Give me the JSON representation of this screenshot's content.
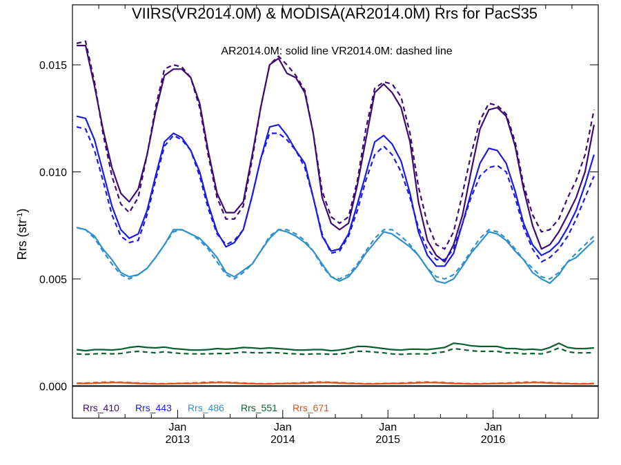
{
  "chart_data": {
    "type": "line",
    "title": "VIIRS(VR2014.0M) & MODISA(AR2014.0M)  Rrs for PacS35",
    "annotation": "AR2014.0M: solid line   VR2014.0M: dashed line",
    "ylabel_main": "Rrs (str",
    "ylabel_sup": "-1",
    "ylabel_close": ")",
    "ylim": [
      -0.0015,
      0.0178
    ],
    "xlim": [
      2012.0,
      2017.0
    ],
    "grid": false,
    "legend_placement": "bottom-left",
    "yticks": [
      {
        "value": 0.0,
        "label": "0.000"
      },
      {
        "value": 0.005,
        "label": "0.005"
      },
      {
        "value": 0.01,
        "label": "0.010"
      },
      {
        "value": 0.015,
        "label": "0.015"
      }
    ],
    "xticks": [
      {
        "value": 2013.0,
        "month": "Jan",
        "year": "2013"
      },
      {
        "value": 2014.0,
        "month": "Jan",
        "year": "2014"
      },
      {
        "value": 2015.0,
        "month": "Jan",
        "year": "2015"
      },
      {
        "value": 2016.0,
        "month": "Jan",
        "year": "2016"
      }
    ],
    "x": [
      2012.04,
      2012.125,
      2012.21,
      2012.29,
      2012.375,
      2012.46,
      2012.54,
      2012.625,
      2012.71,
      2012.79,
      2012.875,
      2012.96,
      2013.04,
      2013.125,
      2013.21,
      2013.29,
      2013.375,
      2013.46,
      2013.54,
      2013.625,
      2013.71,
      2013.79,
      2013.875,
      2013.96,
      2014.04,
      2014.125,
      2014.21,
      2014.29,
      2014.375,
      2014.46,
      2014.54,
      2014.625,
      2014.71,
      2014.79,
      2014.875,
      2014.96,
      2015.04,
      2015.125,
      2015.21,
      2015.29,
      2015.375,
      2015.46,
      2015.54,
      2015.625,
      2015.71,
      2015.79,
      2015.875,
      2015.96,
      2016.04,
      2016.125,
      2016.21,
      2016.29,
      2016.375,
      2016.46,
      2016.54,
      2016.625,
      2016.71,
      2016.79,
      2016.875,
      2016.96
    ],
    "series": [
      {
        "name": "Rrs_410",
        "color": "#3c0a72",
        "solid": [
          0.0159,
          0.0159,
          0.014,
          0.012,
          0.0102,
          0.009,
          0.0086,
          0.0092,
          0.0108,
          0.0128,
          0.0145,
          0.0148,
          0.0148,
          0.0144,
          0.0132,
          0.011,
          0.009,
          0.0081,
          0.0081,
          0.0086,
          0.0108,
          0.013,
          0.015,
          0.0153,
          0.0146,
          0.0144,
          0.0137,
          0.0118,
          0.0088,
          0.0076,
          0.0073,
          0.0076,
          0.0094,
          0.0115,
          0.0137,
          0.0141,
          0.0137,
          0.013,
          0.0114,
          0.0086,
          0.0068,
          0.0061,
          0.0058,
          0.0066,
          0.008,
          0.01,
          0.012,
          0.0129,
          0.013,
          0.0126,
          0.0112,
          0.0092,
          0.0075,
          0.0064,
          0.0066,
          0.0072,
          0.008,
          0.0088,
          0.01,
          0.0122
        ],
        "dashed": [
          0.016,
          0.0161,
          0.0142,
          0.0118,
          0.0098,
          0.0085,
          0.0081,
          0.0088,
          0.0108,
          0.013,
          0.0148,
          0.015,
          0.0149,
          0.0144,
          0.013,
          0.0108,
          0.0088,
          0.0078,
          0.0078,
          0.0084,
          0.0106,
          0.013,
          0.015,
          0.0154,
          0.015,
          0.0145,
          0.0138,
          0.0118,
          0.0091,
          0.0079,
          0.0076,
          0.0079,
          0.0096,
          0.012,
          0.0139,
          0.0142,
          0.0141,
          0.0135,
          0.0118,
          0.0093,
          0.0076,
          0.0066,
          0.0064,
          0.0072,
          0.009,
          0.0108,
          0.0124,
          0.0132,
          0.0131,
          0.0127,
          0.0114,
          0.0094,
          0.008,
          0.0072,
          0.0073,
          0.0078,
          0.0088,
          0.0096,
          0.0108,
          0.0129
        ]
      },
      {
        "name": "Rrs_443",
        "color": "#1a1ae0",
        "solid": [
          0.0126,
          0.0125,
          0.0115,
          0.01,
          0.0084,
          0.0073,
          0.0069,
          0.0071,
          0.0082,
          0.0098,
          0.0114,
          0.0118,
          0.0116,
          0.011,
          0.01,
          0.0085,
          0.0072,
          0.0065,
          0.0067,
          0.0073,
          0.0089,
          0.0106,
          0.0121,
          0.0122,
          0.0117,
          0.011,
          0.0104,
          0.0088,
          0.007,
          0.0063,
          0.0064,
          0.0071,
          0.0085,
          0.0099,
          0.0114,
          0.0117,
          0.0113,
          0.0105,
          0.009,
          0.0072,
          0.0061,
          0.0056,
          0.0056,
          0.0062,
          0.0076,
          0.009,
          0.0104,
          0.0111,
          0.011,
          0.0104,
          0.0091,
          0.0076,
          0.0066,
          0.0061,
          0.0063,
          0.0067,
          0.0074,
          0.0082,
          0.0094,
          0.0108
        ],
        "dashed": [
          0.0121,
          0.012,
          0.011,
          0.0096,
          0.008,
          0.007,
          0.0067,
          0.0068,
          0.008,
          0.0096,
          0.0112,
          0.0117,
          0.0115,
          0.011,
          0.0098,
          0.0083,
          0.0071,
          0.0066,
          0.0068,
          0.0073,
          0.0089,
          0.0106,
          0.0118,
          0.0118,
          0.0115,
          0.011,
          0.0102,
          0.0088,
          0.0071,
          0.0062,
          0.0063,
          0.007,
          0.0082,
          0.0096,
          0.0108,
          0.0112,
          0.0108,
          0.01,
          0.0088,
          0.0074,
          0.0064,
          0.0059,
          0.0059,
          0.0064,
          0.0076,
          0.0088,
          0.0098,
          0.0102,
          0.0103,
          0.01,
          0.0088,
          0.0074,
          0.0064,
          0.0058,
          0.006,
          0.0064,
          0.007,
          0.0078,
          0.0088,
          0.0098
        ]
      },
      {
        "name": "Rrs_486",
        "color": "#2f8fc9",
        "solid": [
          0.0074,
          0.0073,
          0.007,
          0.0064,
          0.0059,
          0.0053,
          0.0051,
          0.0052,
          0.0055,
          0.006,
          0.0066,
          0.0073,
          0.0073,
          0.0071,
          0.0069,
          0.0065,
          0.006,
          0.0053,
          0.0051,
          0.0054,
          0.0057,
          0.0063,
          0.0069,
          0.0073,
          0.0072,
          0.007,
          0.0067,
          0.0063,
          0.0057,
          0.0051,
          0.0049,
          0.0051,
          0.0056,
          0.0062,
          0.0067,
          0.0072,
          0.0071,
          0.0068,
          0.0065,
          0.0061,
          0.0055,
          0.0049,
          0.0048,
          0.005,
          0.0056,
          0.0062,
          0.0067,
          0.0072,
          0.0071,
          0.0068,
          0.0063,
          0.0059,
          0.0053,
          0.005,
          0.0048,
          0.0052,
          0.0058,
          0.006,
          0.0064,
          0.0068
        ],
        "dashed": [
          0.0074,
          0.0073,
          0.0069,
          0.0063,
          0.0057,
          0.0052,
          0.005,
          0.0052,
          0.0055,
          0.006,
          0.0066,
          0.0072,
          0.0073,
          0.0071,
          0.0068,
          0.0064,
          0.0058,
          0.0052,
          0.005,
          0.0053,
          0.0057,
          0.0063,
          0.007,
          0.0073,
          0.0073,
          0.0071,
          0.0068,
          0.0063,
          0.0056,
          0.0051,
          0.005,
          0.0052,
          0.0057,
          0.0063,
          0.0069,
          0.0073,
          0.0073,
          0.007,
          0.0066,
          0.0061,
          0.0055,
          0.0051,
          0.005,
          0.0052,
          0.0057,
          0.0063,
          0.0069,
          0.0073,
          0.0072,
          0.0069,
          0.0064,
          0.0059,
          0.0055,
          0.0051,
          0.005,
          0.0053,
          0.0058,
          0.0062,
          0.0066,
          0.007
        ]
      },
      {
        "name": "Rrs_551",
        "color": "#0a5e2e",
        "solid": [
          0.0017,
          0.00165,
          0.0017,
          0.0017,
          0.00168,
          0.00172,
          0.0018,
          0.00185,
          0.0018,
          0.00178,
          0.00182,
          0.00175,
          0.00172,
          0.00168,
          0.00168,
          0.0017,
          0.00175,
          0.00172,
          0.00175,
          0.0018,
          0.00178,
          0.00175,
          0.00178,
          0.00175,
          0.00172,
          0.00168,
          0.00168,
          0.0017,
          0.0017,
          0.00165,
          0.00168,
          0.00175,
          0.00185,
          0.00185,
          0.0018,
          0.00175,
          0.0017,
          0.00168,
          0.00172,
          0.00172,
          0.0017,
          0.00175,
          0.0018,
          0.002,
          0.00195,
          0.00188,
          0.00185,
          0.00185,
          0.00185,
          0.00175,
          0.00175,
          0.0017,
          0.00172,
          0.00168,
          0.0018,
          0.002,
          0.0018,
          0.00175,
          0.00175,
          0.00178
        ],
        "dashed": [
          0.0015,
          0.00148,
          0.0015,
          0.00152,
          0.0015,
          0.00152,
          0.00158,
          0.00162,
          0.00158,
          0.00155,
          0.0016,
          0.00155,
          0.00152,
          0.0015,
          0.0015,
          0.0015,
          0.00152,
          0.00152,
          0.00155,
          0.00158,
          0.00156,
          0.00155,
          0.00156,
          0.00155,
          0.00152,
          0.0015,
          0.00148,
          0.0015,
          0.0015,
          0.00148,
          0.0015,
          0.00155,
          0.00162,
          0.00162,
          0.00158,
          0.00155,
          0.0015,
          0.00148,
          0.0015,
          0.0015,
          0.0015,
          0.00155,
          0.0016,
          0.00175,
          0.0017,
          0.00165,
          0.00162,
          0.00162,
          0.00162,
          0.00155,
          0.00155,
          0.0015,
          0.00152,
          0.0015,
          0.0016,
          0.00178,
          0.0016,
          0.00155,
          0.00155,
          0.00156
        ]
      },
      {
        "name": "Rrs_671",
        "color": "#d9541c",
        "solid": [
          0.00012,
          0.00012,
          0.00013,
          0.00015,
          0.00016,
          0.00016,
          0.00014,
          0.00012,
          0.00011,
          0.0001,
          0.0001,
          0.00011,
          0.00012,
          0.00012,
          0.00013,
          0.00015,
          0.00016,
          0.00016,
          0.00014,
          0.00012,
          0.00011,
          0.0001,
          0.0001,
          0.00011,
          0.00012,
          0.00012,
          0.00013,
          0.00015,
          0.00016,
          0.00016,
          0.00014,
          0.00012,
          0.00011,
          0.0001,
          0.0001,
          0.00011,
          0.00012,
          0.00012,
          0.00013,
          0.00015,
          0.00016,
          0.00016,
          0.00014,
          0.00012,
          0.00011,
          0.0001,
          0.0001,
          0.00011,
          0.00012,
          0.00012,
          0.00013,
          0.00015,
          0.00016,
          0.00016,
          0.00014,
          0.00012,
          0.00011,
          0.0001,
          0.0001,
          0.00011
        ],
        "dashed": [
          0.00013,
          0.00014,
          0.00016,
          0.00018,
          0.00019,
          0.00018,
          0.00016,
          0.00014,
          0.00012,
          0.00011,
          0.00011,
          0.00012,
          0.00013,
          0.00014,
          0.00016,
          0.00018,
          0.00019,
          0.00018,
          0.00016,
          0.00014,
          0.00012,
          0.00011,
          0.00011,
          0.00012,
          0.00013,
          0.00014,
          0.00016,
          0.00018,
          0.00019,
          0.00018,
          0.00016,
          0.00014,
          0.00012,
          0.00011,
          0.00011,
          0.00012,
          0.00013,
          0.00014,
          0.00016,
          0.00018,
          0.00019,
          0.00018,
          0.00016,
          0.00014,
          0.00012,
          0.00011,
          0.00011,
          0.00012,
          0.00013,
          0.00014,
          0.00016,
          0.00018,
          0.00019,
          0.00018,
          0.00016,
          0.00014,
          0.00012,
          0.00011,
          0.00011,
          0.00012
        ]
      }
    ]
  }
}
